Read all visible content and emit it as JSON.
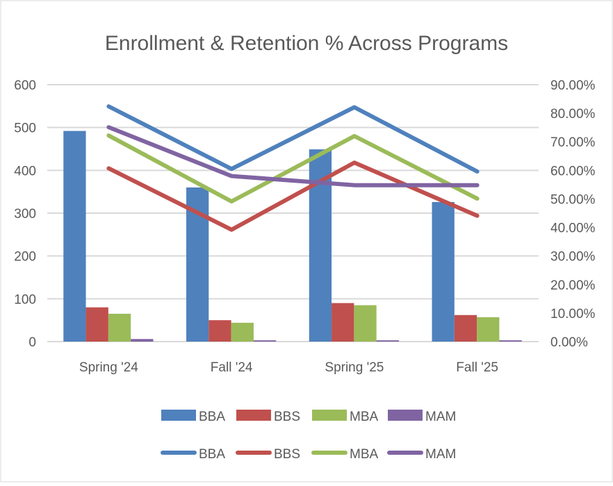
{
  "chart_data": {
    "type": "bar+line",
    "title": "Enrollment & Retention % Across Programs",
    "categories": [
      "Spring '24",
      "Fall '24",
      "Spring '25",
      "Fall '25"
    ],
    "y_left": {
      "range": [
        0,
        600
      ],
      "ticks": [
        "0",
        "100",
        "200",
        "300",
        "400",
        "500",
        "600"
      ]
    },
    "y_right": {
      "range": [
        0,
        90
      ],
      "ticks": [
        "0.00%",
        "10.00%",
        "20.00%",
        "30.00%",
        "40.00%",
        "50.00%",
        "60.00%",
        "70.00%",
        "80.00%",
        "90.00%"
      ]
    },
    "grid": true,
    "legend_position": "bottom",
    "bar_series": [
      {
        "name": "BBA",
        "color": "#4f81bd",
        "values": [
          492,
          360,
          449,
          326
        ]
      },
      {
        "name": "BBS",
        "color": "#c0504d",
        "values": [
          80,
          50,
          90,
          62
        ]
      },
      {
        "name": "MBA",
        "color": "#9bbb59",
        "values": [
          65,
          44,
          85,
          57
        ]
      },
      {
        "name": "MAM",
        "color": "#8064a2",
        "values": [
          6,
          3,
          3,
          3
        ]
      }
    ],
    "line_series": [
      {
        "name": "BBA",
        "color": "#4f81bd",
        "values": [
          82.4,
          60.5,
          82.1,
          59.6
        ]
      },
      {
        "name": "BBS",
        "color": "#c0504d",
        "values": [
          60.7,
          39.2,
          62.7,
          44.1
        ]
      },
      {
        "name": "MBA",
        "color": "#9bbb59",
        "values": [
          72.2,
          49.1,
          72.0,
          50.1
        ]
      },
      {
        "name": "MAM",
        "color": "#8064a2",
        "values": [
          75.1,
          58.0,
          54.8,
          54.8
        ]
      }
    ]
  }
}
